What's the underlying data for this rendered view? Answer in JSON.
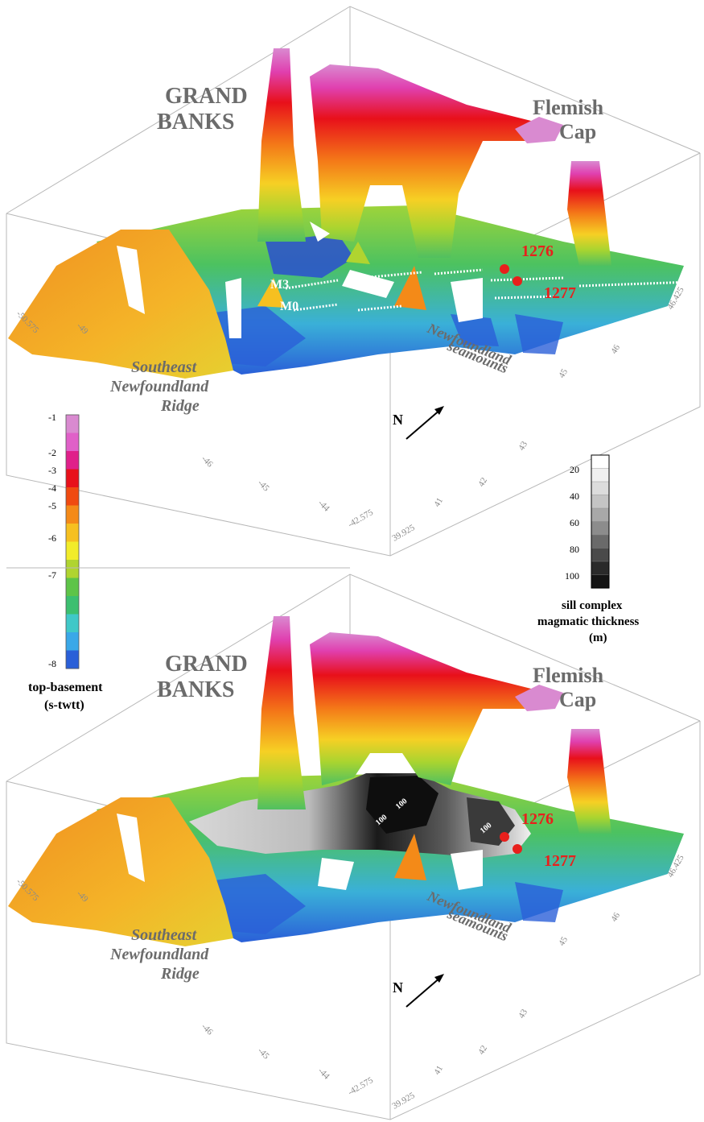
{
  "top_panel": {
    "labels": {
      "grand_banks_line1": "GRAND",
      "grand_banks_line2": "BANKS",
      "flemish_cap_line1": "Flemish",
      "flemish_cap_line2": "Cap",
      "ridge_line1": "Southeast",
      "ridge_line2": "Newfoundland",
      "ridge_line3": "Ridge",
      "seamounts_line1": "Newfoundland",
      "seamounts_line2": "seamounts",
      "site_1276": "1276",
      "site_1277": "1277",
      "anomaly_m3": "M3",
      "anomaly_m0": "M0",
      "north_arrow": "N"
    },
    "lon_ticks": [
      "-50.575",
      "-49",
      "-48",
      "-47",
      "-46",
      "-45",
      "-44",
      "-42.575"
    ],
    "lat_ticks": [
      "39.925",
      "41",
      "42",
      "43",
      "44",
      "45",
      "46",
      "47",
      "46.425"
    ]
  },
  "bottom_panel": {
    "labels": {
      "grand_banks_line1": "GRAND",
      "grand_banks_line2": "BANKS",
      "flemish_cap_line1": "Flemish",
      "flemish_cap_line2": "Cap",
      "ridge_line1": "Southeast",
      "ridge_line2": "Newfoundland",
      "ridge_line3": "Ridge",
      "seamounts_line1": "Newfoundland",
      "seamounts_line2": "seamounts",
      "site_1276": "1276",
      "site_1277": "1277",
      "north_arrow": "N",
      "contour_100a": "100",
      "contour_100b": "100",
      "contour_100c": "100"
    },
    "lon_ticks": [
      "-50.575",
      "-49",
      "-48",
      "-47",
      "-46",
      "-45",
      "-44",
      "-42.575"
    ],
    "lat_ticks": [
      "39.925",
      "41",
      "42",
      "43",
      "44",
      "45",
      "46",
      "47",
      "46.425"
    ]
  },
  "legend_basement": {
    "title_line1": "top-basement",
    "title_line2": "(s-twtt)",
    "ticks": [
      "-1",
      "-2",
      "-3",
      "-4",
      "-5",
      "-6",
      "-7",
      "-8"
    ],
    "colors": [
      "#d98ad0",
      "#e060c8",
      "#e0208a",
      "#e8101a",
      "#f04a10",
      "#f48a18",
      "#f6c020",
      "#f2ec2a",
      "#b0d430",
      "#5ec448",
      "#3cbf70",
      "#40c8c8",
      "#3aa8e8",
      "#2a5fd8"
    ]
  },
  "legend_sill": {
    "title_line1": "sill complex",
    "title_line2": "magmatic thickness",
    "title_line3": "(m)",
    "ticks": [
      "20",
      "40",
      "60",
      "80",
      "100"
    ],
    "colors": [
      "#ffffff",
      "#f0f0f0",
      "#dcdcdc",
      "#c4c4c4",
      "#a8a8a8",
      "#8c8c8c",
      "#6a6a6a",
      "#4a4a4a",
      "#2a2a2a",
      "#141414"
    ]
  }
}
